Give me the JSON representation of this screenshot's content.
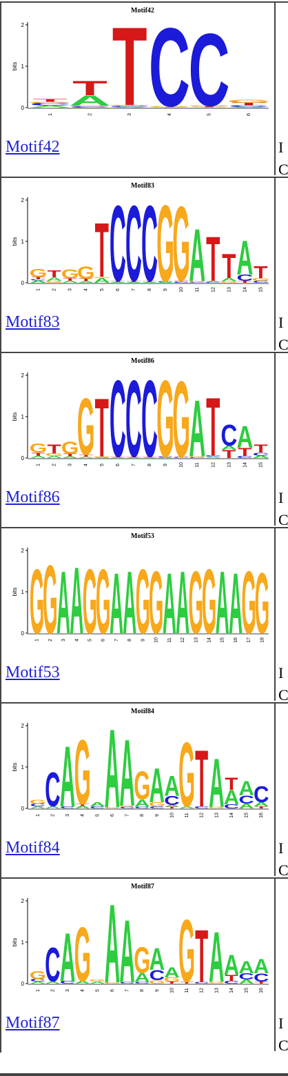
{
  "motifs": [
    {
      "name": "Motif42",
      "link_text": "Motif42",
      "y_axis_label": "bits",
      "y_ticks": [
        "2",
        "1",
        "0"
      ],
      "positions": [
        "1",
        "2",
        "3",
        "4",
        "5",
        "6"
      ],
      "stacks": [
        [
          [
            "A",
            0.05
          ],
          [
            "C",
            0.06
          ],
          [
            "G",
            0.03
          ],
          [
            "T",
            0.07
          ]
        ],
        [
          [
            "C",
            0.03
          ],
          [
            "G",
            0.02
          ],
          [
            "A",
            0.25
          ],
          [
            "T",
            0.35
          ]
        ],
        [
          [
            "A",
            0.02
          ],
          [
            "C",
            0.02
          ],
          [
            "G",
            0.02
          ],
          [
            "T",
            1.95
          ]
        ],
        [
          [
            "A",
            0.01
          ],
          [
            "T",
            0.01
          ],
          [
            "G",
            0.02
          ],
          [
            "C",
            1.95
          ]
        ],
        [
          [
            "A",
            0.01
          ],
          [
            "T",
            0.02
          ],
          [
            "G",
            0.02
          ],
          [
            "C",
            1.8
          ]
        ],
        [
          [
            "A",
            0.02
          ],
          [
            "C",
            0.04
          ],
          [
            "T",
            0.06
          ],
          [
            "G",
            0.08
          ]
        ]
      ],
      "side_text": [
        "I",
        "C"
      ]
    },
    {
      "name": "Motif83",
      "link_text": "Motif83",
      "y_axis_label": "bits",
      "y_ticks": [
        "2",
        "1",
        "0"
      ],
      "positions": [
        "1",
        "2",
        "3",
        "4",
        "5",
        "6",
        "7",
        "8",
        "9",
        "10",
        "11",
        "12",
        "13",
        "14",
        "15"
      ],
      "stacks": [
        [
          [
            "A",
            0.06
          ],
          [
            "C",
            0.03
          ],
          [
            "T",
            0.05
          ],
          [
            "G",
            0.2
          ]
        ],
        [
          [
            "G",
            0.05
          ],
          [
            "A",
            0.08
          ],
          [
            "T",
            0.18
          ]
        ],
        [
          [
            "A",
            0.05
          ],
          [
            "T",
            0.06
          ],
          [
            "G",
            0.22
          ]
        ],
        [
          [
            "A",
            0.04
          ],
          [
            "T",
            0.06
          ],
          [
            "G",
            0.3
          ]
        ],
        [
          [
            "A",
            0.12
          ],
          [
            "G",
            0.02
          ],
          [
            "T",
            1.35
          ]
        ],
        [
          [
            "A",
            0.02
          ],
          [
            "T",
            0.03
          ],
          [
            "C",
            1.88
          ]
        ],
        [
          [
            "A",
            0.02
          ],
          [
            "T",
            0.03
          ],
          [
            "C",
            1.88
          ]
        ],
        [
          [
            "A",
            0.02
          ],
          [
            "T",
            0.03
          ],
          [
            "C",
            1.88
          ]
        ],
        [
          [
            "A",
            0.02
          ],
          [
            "C",
            0.02
          ],
          [
            "G",
            1.9
          ]
        ],
        [
          [
            "C",
            0.03
          ],
          [
            "T",
            0.03
          ],
          [
            "G",
            1.85
          ]
        ],
        [
          [
            "C",
            0.02
          ],
          [
            "G",
            0.02
          ],
          [
            "A",
            1.3
          ]
        ],
        [
          [
            "C",
            0.02
          ],
          [
            "A",
            0.03
          ],
          [
            "T",
            1.1
          ]
        ],
        [
          [
            "G",
            0.04
          ],
          [
            "A",
            0.08
          ],
          [
            "T",
            0.6
          ]
        ],
        [
          [
            "T",
            0.05
          ],
          [
            "C",
            0.15
          ],
          [
            "A",
            0.85
          ]
        ],
        [
          [
            "C",
            0.05
          ],
          [
            "G",
            0.06
          ],
          [
            "T",
            0.3
          ]
        ]
      ],
      "side_text": [
        "I",
        "C"
      ]
    },
    {
      "name": "Motif86",
      "link_text": "Motif86",
      "y_axis_label": "bits",
      "y_ticks": [
        "2",
        "1",
        "0"
      ],
      "positions": [
        "1",
        "2",
        "3",
        "4",
        "5",
        "6",
        "7",
        "8",
        "9",
        "10",
        "11",
        "12",
        "13",
        "14",
        "15"
      ],
      "stacks": [
        [
          [
            "A",
            0.05
          ],
          [
            "T",
            0.08
          ],
          [
            "G",
            0.22
          ]
        ],
        [
          [
            "A",
            0.05
          ],
          [
            "G",
            0.06
          ],
          [
            "T",
            0.22
          ]
        ],
        [
          [
            "A",
            0.04
          ],
          [
            "T",
            0.06
          ],
          [
            "G",
            0.3
          ]
        ],
        [
          [
            "A",
            0.03
          ],
          [
            "T",
            0.05
          ],
          [
            "G",
            1.4
          ]
        ],
        [
          [
            "A",
            0.02
          ],
          [
            "G",
            0.02
          ],
          [
            "T",
            1.45
          ]
        ],
        [
          [
            "A",
            0.02
          ],
          [
            "T",
            0.02
          ],
          [
            "C",
            1.9
          ]
        ],
        [
          [
            "A",
            0.02
          ],
          [
            "T",
            0.02
          ],
          [
            "C",
            1.9
          ]
        ],
        [
          [
            "A",
            0.02
          ],
          [
            "T",
            0.02
          ],
          [
            "C",
            1.9
          ]
        ],
        [
          [
            "A",
            0.02
          ],
          [
            "C",
            0.02
          ],
          [
            "G",
            1.9
          ]
        ],
        [
          [
            "C",
            0.02
          ],
          [
            "T",
            0.02
          ],
          [
            "G",
            1.88
          ]
        ],
        [
          [
            "C",
            0.02
          ],
          [
            "G",
            0.02
          ],
          [
            "A",
            1.4
          ]
        ],
        [
          [
            "A",
            0.03
          ],
          [
            "C",
            0.03
          ],
          [
            "T",
            1.45
          ]
        ],
        [
          [
            "T",
            0.2
          ],
          [
            "A",
            0.1
          ],
          [
            "C",
            0.52
          ]
        ],
        [
          [
            "C",
            0.05
          ],
          [
            "T",
            0.2
          ],
          [
            "A",
            0.55
          ]
        ],
        [
          [
            "A",
            0.06
          ],
          [
            "C",
            0.07
          ],
          [
            "T",
            0.2
          ]
        ]
      ],
      "side_text": [
        "I",
        "C"
      ]
    },
    {
      "name": "Motif53",
      "link_text": "Motif53",
      "y_axis_label": "bits",
      "y_ticks": [
        "2",
        "1",
        "0"
      ],
      "positions": [
        "1",
        "2",
        "3",
        "4",
        "5",
        "6",
        "7",
        "8",
        "9",
        "10",
        "11",
        "12",
        "13",
        "14",
        "15",
        "16",
        "17",
        "18"
      ],
      "stacks": [
        [
          [
            "G",
            1.6
          ]
        ],
        [
          [
            "G",
            1.7
          ]
        ],
        [
          [
            "A",
            1.55
          ]
        ],
        [
          [
            "A",
            1.65
          ]
        ],
        [
          [
            "G",
            1.6
          ]
        ],
        [
          [
            "G",
            1.6
          ]
        ],
        [
          [
            "A",
            1.5
          ]
        ],
        [
          [
            "A",
            1.55
          ]
        ],
        [
          [
            "G",
            1.6
          ]
        ],
        [
          [
            "G",
            1.55
          ]
        ],
        [
          [
            "A",
            1.5
          ]
        ],
        [
          [
            "A",
            1.55
          ]
        ],
        [
          [
            "G",
            1.55
          ]
        ],
        [
          [
            "G",
            1.6
          ]
        ],
        [
          [
            "A",
            1.55
          ]
        ],
        [
          [
            "A",
            1.5
          ]
        ],
        [
          [
            "G",
            1.55
          ]
        ],
        [
          [
            "G",
            1.5
          ]
        ]
      ],
      "side_text": [
        "I",
        "C"
      ]
    },
    {
      "name": "Motif84",
      "link_text": "Motif84",
      "y_axis_label": "bits",
      "y_ticks": [
        "2",
        "1",
        "0"
      ],
      "positions": [
        "1",
        "2",
        "3",
        "4",
        "5",
        "6",
        "7",
        "8",
        "9",
        "10",
        "11",
        "12",
        "13",
        "14",
        "15",
        "16"
      ],
      "stacks": [
        [
          [
            "A",
            0.05
          ],
          [
            "C",
            0.06
          ],
          [
            "G",
            0.1
          ]
        ],
        [
          [
            "A",
            0.05
          ],
          [
            "C",
            0.85
          ]
        ],
        [
          [
            "C",
            0.05
          ],
          [
            "A",
            1.5
          ]
        ],
        [
          [
            "A",
            0.06
          ],
          [
            "T",
            0.05
          ],
          [
            "G",
            1.6
          ]
        ],
        [
          [
            "C",
            0.05
          ],
          [
            "A",
            0.1
          ]
        ],
        [
          [
            "G",
            0.03
          ],
          [
            "A",
            1.95
          ]
        ],
        [
          [
            "C",
            0.04
          ],
          [
            "G",
            0.03
          ],
          [
            "A",
            1.65
          ]
        ],
        [
          [
            "C",
            0.04
          ],
          [
            "A",
            0.18
          ],
          [
            "G",
            0.7
          ]
        ],
        [
          [
            "C",
            0.05
          ],
          [
            "G",
            0.1
          ],
          [
            "A",
            0.85
          ]
        ],
        [
          [
            "T",
            0.04
          ],
          [
            "A",
            0.04
          ],
          [
            "C",
            0.22
          ],
          [
            "A",
            0.5
          ]
        ],
        [
          [
            "A",
            0.05
          ],
          [
            "G",
            1.6
          ]
        ],
        [
          [
            "C",
            0.05
          ],
          [
            "T",
            1.4
          ]
        ],
        [
          [
            "G",
            0.04
          ],
          [
            "A",
            1.2
          ]
        ],
        [
          [
            "C",
            0.1
          ],
          [
            "A",
            0.35
          ],
          [
            "T",
            0.3
          ]
        ],
        [
          [
            "A",
            0.12
          ],
          [
            "C",
            0.2
          ],
          [
            "A",
            0.35
          ]
        ],
        [
          [
            "T",
            0.05
          ],
          [
            "A",
            0.1
          ],
          [
            "C",
            0.4
          ]
        ]
      ],
      "side_text": [
        "I",
        "C"
      ]
    },
    {
      "name": "Motif87",
      "link_text": "Motif87",
      "y_axis_label": "bits",
      "y_ticks": [
        "2",
        "1",
        "0"
      ],
      "positions": [
        "1",
        "2",
        "3",
        "4",
        "5",
        "6",
        "7",
        "8",
        "9",
        "10",
        "11",
        "12",
        "13",
        "14",
        "15",
        "16"
      ],
      "stacks": [
        [
          [
            "A",
            0.05
          ],
          [
            "C",
            0.06
          ],
          [
            "G",
            0.2
          ]
        ],
        [
          [
            "A",
            0.05
          ],
          [
            "C",
            0.85
          ]
        ],
        [
          [
            "C",
            0.06
          ],
          [
            "A",
            1.2
          ]
        ],
        [
          [
            "A",
            0.06
          ],
          [
            "G",
            1.35
          ]
        ],
        [
          [
            "A",
            0.05
          ],
          [
            "G",
            0.05
          ]
        ],
        [
          [
            "G",
            0.03
          ],
          [
            "A",
            1.95
          ]
        ],
        [
          [
            "C",
            0.04
          ],
          [
            "A",
            1.55
          ]
        ],
        [
          [
            "C",
            0.04
          ],
          [
            "A",
            0.22
          ],
          [
            "G",
            0.65
          ]
        ],
        [
          [
            "G",
            0.08
          ],
          [
            "C",
            0.25
          ],
          [
            "A",
            0.55
          ]
        ],
        [
          [
            "T",
            0.05
          ],
          [
            "G",
            0.1
          ],
          [
            "A",
            0.25
          ]
        ],
        [
          [
            "T",
            0.05
          ],
          [
            "G",
            1.55
          ]
        ],
        [
          [
            "C",
            0.04
          ],
          [
            "T",
            1.3
          ]
        ],
        [
          [
            "G",
            0.04
          ],
          [
            "A",
            1.25
          ]
        ],
        [
          [
            "C",
            0.06
          ],
          [
            "T",
            0.15
          ],
          [
            "A",
            0.5
          ]
        ],
        [
          [
            "A",
            0.1
          ],
          [
            "C",
            0.15
          ],
          [
            "A",
            0.3
          ]
        ],
        [
          [
            "T",
            0.05
          ],
          [
            "C",
            0.2
          ],
          [
            "A",
            0.35
          ]
        ]
      ],
      "side_text": [
        "I",
        "C"
      ]
    }
  ],
  "colors": {
    "A": "#2ecc40",
    "C": "#1b1bd9",
    "G": "#f7a81b",
    "T": "#d61818"
  }
}
